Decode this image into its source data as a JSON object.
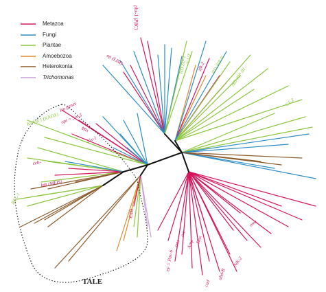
{
  "legend": [
    "Metazoa",
    "Fungi",
    "Plantae",
    "Amoebozoa",
    "Heterokonta",
    "Trichomonas"
  ],
  "labels": [
    "pbx-1 (PBC)",
    "ap (LIM)",
    "CUT",
    "HD ZIP I",
    "zfh-2",
    "HD ZIP II",
    "HD ZIP III",
    "GL 2",
    "Iro genes",
    "opt = Six-3",
    "Mix",
    "Six-1",
    "KNOX I (KNOX)",
    "ceh-",
    "hth (MEIS)",
    "BEL-1",
    "EXD",
    "ey = Pax-6",
    "eve",
    "ems",
    "Antp",
    "Hox",
    "NK-2",
    "cad",
    "abd-B",
    "emx"
  ],
  "group_label": "TALE"
}
